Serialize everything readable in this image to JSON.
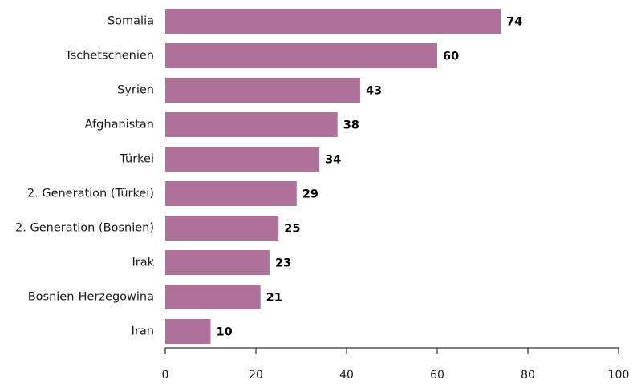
{
  "chart_data": {
    "type": "bar",
    "orientation": "horizontal",
    "categories": [
      "Somalia",
      "Tschetschenien",
      "Syrien",
      "Afghanistan",
      "Türkei",
      "2. Generation (Türkei)",
      "2. Generation (Bosnien)",
      "Irak",
      "Bosnien-Herzegowina",
      "Iran"
    ],
    "values": [
      74,
      60,
      43,
      38,
      34,
      29,
      25,
      23,
      21,
      10
    ],
    "value_labels": [
      "74",
      "60",
      "43",
      "38",
      "34",
      "29",
      "25",
      "23",
      "21",
      "10"
    ],
    "xlim": [
      0,
      100
    ],
    "xticks": [
      0,
      20,
      40,
      60,
      80,
      100
    ],
    "xtick_labels": [
      "0",
      "20",
      "40",
      "60",
      "80",
      "100"
    ],
    "title": "",
    "xlabel": "",
    "ylabel": "",
    "grid": false,
    "colors": {
      "bar": "#ae7199",
      "value_label": "#000000",
      "axis": "#000000"
    }
  }
}
